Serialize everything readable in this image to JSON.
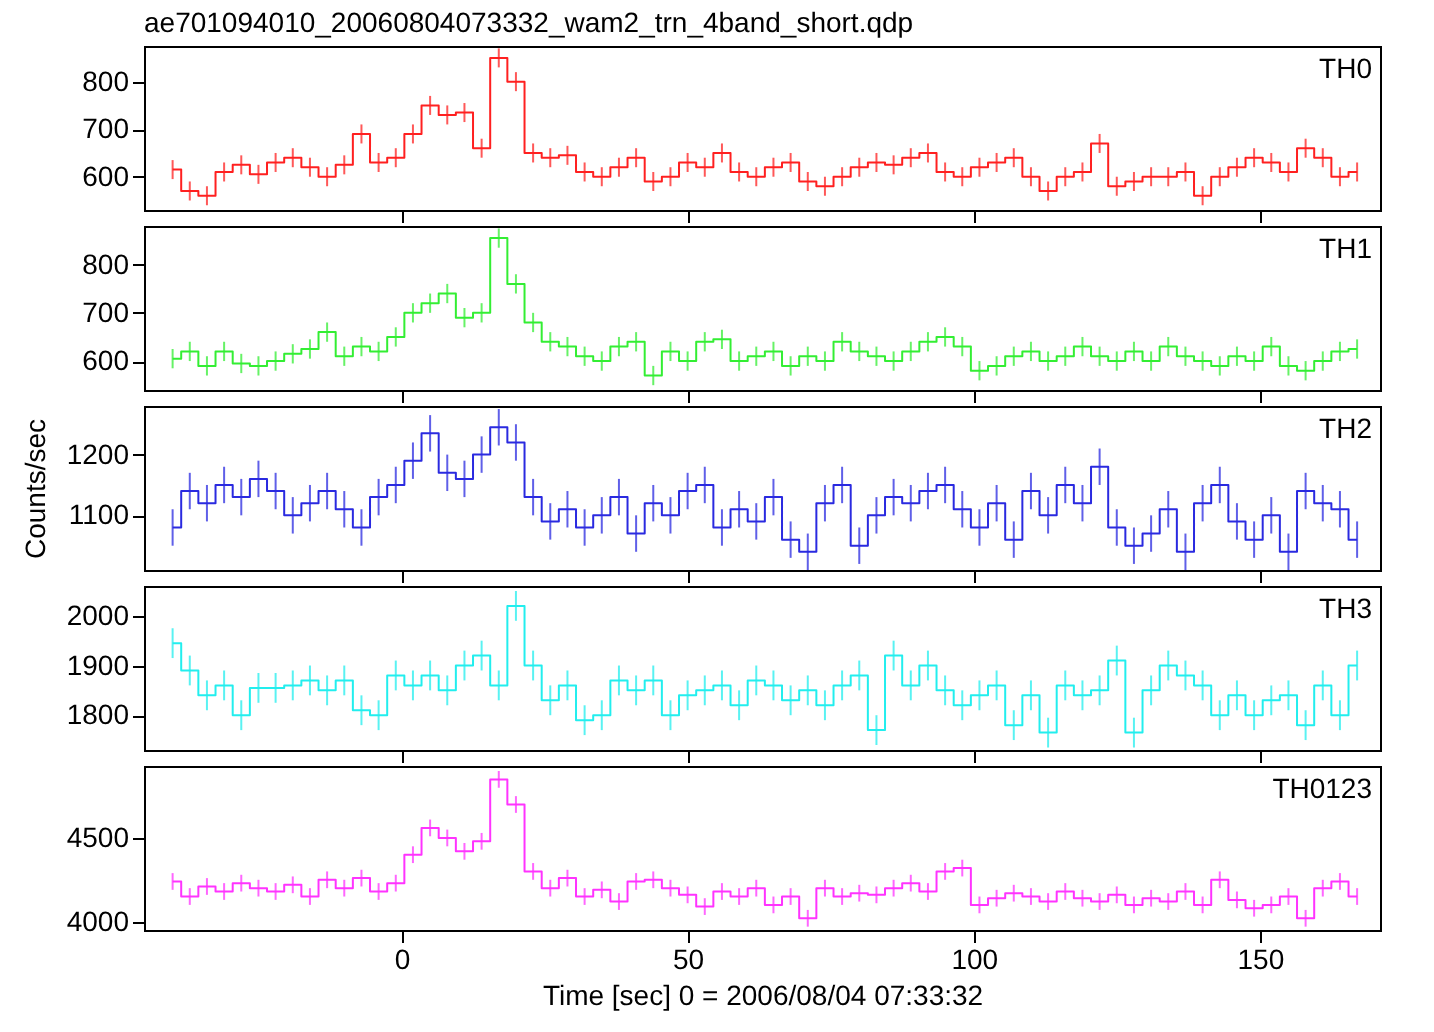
{
  "chart_data": [
    {
      "type": "step",
      "title": "ae701094010_20060804073332_wam2_trn_4band_short.qdp",
      "x": [
        -40,
        -37,
        -34,
        -31,
        -28,
        -25,
        -22,
        -19,
        -16,
        -13,
        -10,
        -7,
        -4,
        -1,
        2,
        5,
        8,
        11,
        14,
        17,
        20,
        23,
        26,
        29,
        32,
        35,
        38,
        41,
        44,
        47,
        50,
        53,
        56,
        59,
        62,
        65,
        68,
        71,
        74,
        77,
        80,
        83,
        86,
        89,
        92,
        95,
        98,
        101,
        104,
        107,
        110,
        113,
        116,
        119,
        122,
        125,
        128,
        131,
        134,
        137,
        140,
        143,
        146,
        149,
        152,
        155,
        158,
        161,
        164,
        167
      ],
      "xlim": [
        -45,
        171
      ],
      "xticks": [
        0,
        50,
        100,
        150
      ],
      "ylim": [
        530,
        875
      ],
      "yticks": [
        600,
        700,
        800
      ],
      "tick_labels": "y",
      "series": [
        {
          "name": "TH0",
          "color": "#ff2020",
          "values": [
            615,
            570,
            560,
            610,
            625,
            605,
            630,
            640,
            620,
            600,
            625,
            690,
            630,
            640,
            690,
            750,
            730,
            735,
            660,
            850,
            800,
            650,
            640,
            645,
            610,
            600,
            620,
            640,
            590,
            600,
            630,
            620,
            650,
            610,
            600,
            620,
            630,
            590,
            580,
            600,
            620,
            630,
            625,
            640,
            650,
            610,
            600,
            620,
            630,
            640,
            600,
            570,
            600,
            610,
            670,
            580,
            590,
            600,
            600,
            610,
            560,
            600,
            620,
            640,
            630,
            610,
            660,
            640,
            600,
            610
          ],
          "errors": [
            20,
            20,
            20,
            20,
            20,
            20,
            20,
            20,
            20,
            20,
            20,
            20,
            20,
            20,
            20,
            20,
            20,
            20,
            20,
            20,
            20,
            20,
            20,
            20,
            20,
            20,
            20,
            20,
            20,
            20,
            20,
            20,
            20,
            20,
            20,
            20,
            20,
            20,
            20,
            20,
            20,
            20,
            20,
            20,
            20,
            20,
            20,
            20,
            20,
            20,
            20,
            20,
            20,
            20,
            20,
            20,
            20,
            20,
            20,
            20,
            20,
            20,
            20,
            20,
            20,
            20,
            20,
            20,
            20,
            20
          ]
        }
      ]
    },
    {
      "type": "step",
      "x": [
        -40,
        -37,
        -34,
        -31,
        -28,
        -25,
        -22,
        -19,
        -16,
        -13,
        -10,
        -7,
        -4,
        -1,
        2,
        5,
        8,
        11,
        14,
        17,
        20,
        23,
        26,
        29,
        32,
        35,
        38,
        41,
        44,
        47,
        50,
        53,
        56,
        59,
        62,
        65,
        68,
        71,
        74,
        77,
        80,
        83,
        86,
        89,
        92,
        95,
        98,
        101,
        104,
        107,
        110,
        113,
        116,
        119,
        122,
        125,
        128,
        131,
        134,
        137,
        140,
        143,
        146,
        149,
        152,
        155,
        158,
        161,
        164,
        167
      ],
      "xlim": [
        -45,
        171
      ],
      "xticks": [
        0,
        50,
        100,
        150
      ],
      "ylim": [
        540,
        880
      ],
      "yticks": [
        600,
        700,
        800
      ],
      "tick_labels": "y",
      "series": [
        {
          "name": "TH1",
          "color": "#33ee33",
          "values": [
            605,
            620,
            590,
            620,
            595,
            590,
            600,
            615,
            625,
            660,
            610,
            630,
            620,
            650,
            700,
            720,
            740,
            690,
            700,
            855,
            760,
            680,
            640,
            630,
            610,
            600,
            630,
            640,
            570,
            620,
            600,
            640,
            645,
            600,
            610,
            620,
            590,
            610,
            600,
            640,
            620,
            610,
            600,
            620,
            640,
            650,
            630,
            580,
            590,
            610,
            620,
            600,
            610,
            630,
            610,
            600,
            620,
            600,
            630,
            610,
            600,
            590,
            610,
            600,
            630,
            590,
            580,
            600,
            620,
            625
          ],
          "errors": [
            20,
            20,
            20,
            20,
            20,
            20,
            20,
            20,
            20,
            20,
            20,
            20,
            20,
            20,
            20,
            20,
            20,
            20,
            20,
            20,
            20,
            20,
            20,
            20,
            20,
            20,
            20,
            20,
            20,
            20,
            20,
            20,
            20,
            20,
            20,
            20,
            20,
            20,
            20,
            20,
            20,
            20,
            20,
            20,
            20,
            20,
            20,
            20,
            20,
            20,
            20,
            20,
            20,
            20,
            20,
            20,
            20,
            20,
            20,
            20,
            20,
            20,
            20,
            20,
            20,
            20,
            20,
            20,
            20,
            20
          ]
        }
      ]
    },
    {
      "type": "step",
      "ylabel": "Counts/sec",
      "x": [
        -40,
        -37,
        -34,
        -31,
        -28,
        -25,
        -22,
        -19,
        -16,
        -13,
        -10,
        -7,
        -4,
        -1,
        2,
        5,
        8,
        11,
        14,
        17,
        20,
        23,
        26,
        29,
        32,
        35,
        38,
        41,
        44,
        47,
        50,
        53,
        56,
        59,
        62,
        65,
        68,
        71,
        74,
        77,
        80,
        83,
        86,
        89,
        92,
        95,
        98,
        101,
        104,
        107,
        110,
        113,
        116,
        119,
        122,
        125,
        128,
        131,
        134,
        137,
        140,
        143,
        146,
        149,
        152,
        155,
        158,
        161,
        164,
        167
      ],
      "xlim": [
        -45,
        171
      ],
      "xticks": [
        0,
        50,
        100,
        150
      ],
      "ylim": [
        1010,
        1280
      ],
      "yticks": [
        1100,
        1200
      ],
      "tick_labels": "y",
      "series": [
        {
          "name": "TH2",
          "color": "#2a2ae0",
          "values": [
            1080,
            1140,
            1120,
            1150,
            1130,
            1160,
            1140,
            1100,
            1120,
            1140,
            1110,
            1080,
            1130,
            1150,
            1190,
            1235,
            1170,
            1160,
            1200,
            1245,
            1220,
            1130,
            1090,
            1110,
            1080,
            1100,
            1130,
            1070,
            1120,
            1100,
            1140,
            1150,
            1080,
            1110,
            1090,
            1130,
            1060,
            1040,
            1120,
            1150,
            1050,
            1100,
            1130,
            1120,
            1140,
            1150,
            1110,
            1080,
            1120,
            1060,
            1140,
            1100,
            1150,
            1120,
            1180,
            1080,
            1050,
            1070,
            1110,
            1040,
            1120,
            1150,
            1090,
            1060,
            1100,
            1040,
            1140,
            1120,
            1110,
            1060
          ],
          "errors": [
            30,
            30,
            30,
            30,
            30,
            30,
            30,
            30,
            30,
            30,
            30,
            30,
            30,
            30,
            30,
            30,
            30,
            30,
            30,
            30,
            30,
            30,
            30,
            30,
            30,
            30,
            30,
            30,
            30,
            30,
            30,
            30,
            30,
            30,
            30,
            30,
            30,
            30,
            30,
            30,
            30,
            30,
            30,
            30,
            30,
            30,
            30,
            30,
            30,
            30,
            30,
            30,
            30,
            30,
            30,
            30,
            30,
            30,
            30,
            30,
            30,
            30,
            30,
            30,
            30,
            30,
            30,
            30,
            30,
            30
          ]
        }
      ]
    },
    {
      "type": "step",
      "x": [
        -40,
        -37,
        -34,
        -31,
        -28,
        -25,
        -22,
        -19,
        -16,
        -13,
        -10,
        -7,
        -4,
        -1,
        2,
        5,
        8,
        11,
        14,
        17,
        20,
        23,
        26,
        29,
        32,
        35,
        38,
        41,
        44,
        47,
        50,
        53,
        56,
        59,
        62,
        65,
        68,
        71,
        74,
        77,
        80,
        83,
        86,
        89,
        92,
        95,
        98,
        101,
        104,
        107,
        110,
        113,
        116,
        119,
        122,
        125,
        128,
        131,
        134,
        137,
        140,
        143,
        146,
        149,
        152,
        155,
        158,
        161,
        164,
        167
      ],
      "xlim": [
        -45,
        171
      ],
      "xticks": [
        0,
        50,
        100,
        150
      ],
      "ylim": [
        1730,
        2060
      ],
      "yticks": [
        1800,
        1900,
        2000
      ],
      "tick_labels": "y",
      "series": [
        {
          "name": "TH3",
          "color": "#22eeee",
          "values": [
            1945,
            1890,
            1840,
            1860,
            1800,
            1855,
            1855,
            1860,
            1870,
            1850,
            1870,
            1810,
            1800,
            1880,
            1860,
            1880,
            1850,
            1900,
            1920,
            1860,
            2020,
            1900,
            1830,
            1860,
            1790,
            1800,
            1870,
            1850,
            1870,
            1800,
            1840,
            1850,
            1860,
            1820,
            1870,
            1860,
            1830,
            1850,
            1820,
            1860,
            1880,
            1770,
            1920,
            1860,
            1900,
            1850,
            1820,
            1840,
            1860,
            1780,
            1840,
            1765,
            1860,
            1840,
            1850,
            1910,
            1765,
            1850,
            1900,
            1880,
            1860,
            1800,
            1840,
            1800,
            1830,
            1840,
            1780,
            1860,
            1800,
            1900
          ],
          "errors": [
            30,
            30,
            30,
            30,
            30,
            30,
            30,
            30,
            30,
            30,
            30,
            30,
            30,
            30,
            30,
            30,
            30,
            30,
            30,
            30,
            30,
            30,
            30,
            30,
            30,
            30,
            30,
            30,
            30,
            30,
            30,
            30,
            30,
            30,
            30,
            30,
            30,
            30,
            30,
            30,
            30,
            30,
            30,
            30,
            30,
            30,
            30,
            30,
            30,
            30,
            30,
            30,
            30,
            30,
            30,
            30,
            30,
            30,
            30,
            30,
            30,
            30,
            30,
            30,
            30,
            30,
            30,
            30,
            30,
            30
          ]
        }
      ]
    },
    {
      "type": "step",
      "xlabel": "Time [sec] 0 = 2006/08/04 07:33:32",
      "x": [
        -40,
        -37,
        -34,
        -31,
        -28,
        -25,
        -22,
        -19,
        -16,
        -13,
        -10,
        -7,
        -4,
        -1,
        2,
        5,
        8,
        11,
        14,
        17,
        20,
        23,
        26,
        29,
        32,
        35,
        38,
        41,
        44,
        47,
        50,
        53,
        56,
        59,
        62,
        65,
        68,
        71,
        74,
        77,
        80,
        83,
        86,
        89,
        92,
        95,
        98,
        101,
        104,
        107,
        110,
        113,
        116,
        119,
        122,
        125,
        128,
        131,
        134,
        137,
        140,
        143,
        146,
        149,
        152,
        155,
        158,
        161,
        164,
        167
      ],
      "xlim": [
        -45,
        171
      ],
      "xticks": [
        0,
        50,
        100,
        150
      ],
      "ylim": [
        3950,
        4930
      ],
      "yticks": [
        4000,
        4500
      ],
      "series": [
        {
          "name": "TH0123",
          "color": "#ff33ff",
          "values": [
            4240,
            4150,
            4210,
            4180,
            4230,
            4200,
            4180,
            4220,
            4150,
            4250,
            4200,
            4260,
            4180,
            4230,
            4400,
            4560,
            4500,
            4420,
            4480,
            4850,
            4700,
            4300,
            4200,
            4260,
            4150,
            4190,
            4120,
            4240,
            4250,
            4200,
            4160,
            4090,
            4180,
            4150,
            4200,
            4100,
            4150,
            4020,
            4200,
            4150,
            4170,
            4160,
            4200,
            4230,
            4180,
            4300,
            4320,
            4100,
            4140,
            4170,
            4150,
            4120,
            4180,
            4140,
            4120,
            4160,
            4100,
            4140,
            4120,
            4180,
            4100,
            4250,
            4130,
            4080,
            4100,
            4150,
            4020,
            4200,
            4240,
            4150
          ],
          "errors": [
            50,
            50,
            50,
            50,
            50,
            50,
            50,
            50,
            50,
            50,
            50,
            50,
            50,
            50,
            50,
            50,
            50,
            50,
            50,
            50,
            50,
            50,
            50,
            50,
            50,
            50,
            50,
            50,
            50,
            50,
            50,
            50,
            50,
            50,
            50,
            50,
            50,
            50,
            50,
            50,
            50,
            50,
            50,
            50,
            50,
            50,
            50,
            50,
            50,
            50,
            50,
            50,
            50,
            50,
            50,
            50,
            50,
            50,
            50,
            50,
            50,
            50,
            50,
            50,
            50,
            50,
            50,
            50,
            50,
            50
          ]
        }
      ]
    }
  ]
}
